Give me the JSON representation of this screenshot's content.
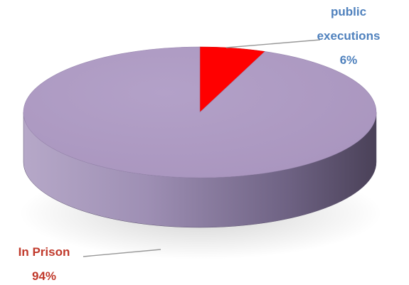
{
  "chart_data": {
    "type": "pie",
    "style": "3d",
    "categories": [
      "In Prison",
      "public executions"
    ],
    "values": [
      94,
      6
    ],
    "value_labels": [
      "94%",
      "6%"
    ],
    "colors": [
      "#B09DC4",
      "#FF0000"
    ],
    "label_colors": [
      "#C0392B",
      "#4F81BD"
    ],
    "legend": "none",
    "title": ""
  }
}
